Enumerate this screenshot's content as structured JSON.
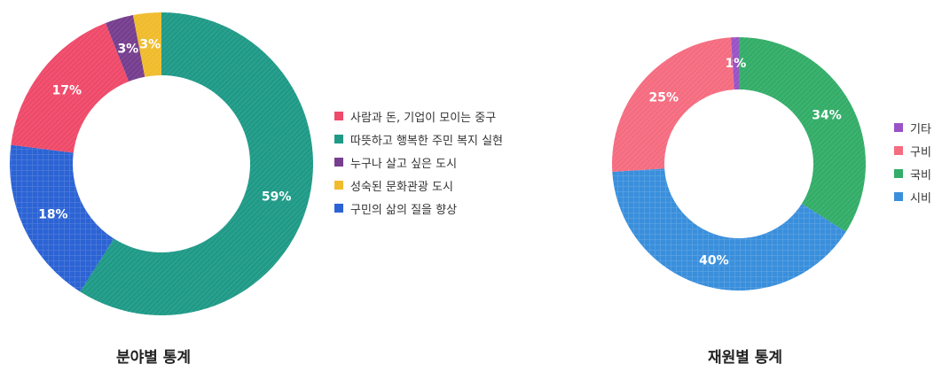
{
  "chart_data": [
    {
      "type": "pie",
      "title": "분야별 통계",
      "slices": [
        {
          "label": "따뜻하고 행복한 주민 복지 실현",
          "value": 59,
          "display": "59%",
          "color": "#1f9a87"
        },
        {
          "label": "구민의 삶의 질을 향상",
          "value": 18,
          "display": "18%",
          "color": "#2c63d4"
        },
        {
          "label": "사람과 돈, 기업이 모이는 중구",
          "value": 17,
          "display": "17%",
          "color": "#ef4a6a"
        },
        {
          "label": "누구나 살고 싶은 도시",
          "value": 3,
          "display": "3%",
          "color": "#763e8e"
        },
        {
          "label": "성숙된 문화관광 도시",
          "value": 3,
          "display": "3%",
          "color": "#f0bc2d"
        }
      ],
      "legend": [
        {
          "label": "사람과 돈, 기업이 모이는 중구",
          "color": "#ef4a6a"
        },
        {
          "label": "따뜻하고 행복한 주민 복지 실현",
          "color": "#1f9a87"
        },
        {
          "label": "누구나 살고 싶은 도시",
          "color": "#763e8e"
        },
        {
          "label": "성숙된 문화관광 도시",
          "color": "#f0bc2d"
        },
        {
          "label": "구민의 삶의 질을 향상",
          "color": "#2c63d4"
        }
      ],
      "legend_position": "right"
    },
    {
      "type": "pie",
      "title": "재원별 통계",
      "slices": [
        {
          "label": "국비",
          "value": 34,
          "display": "34%",
          "color": "#33ad68"
        },
        {
          "label": "시비",
          "value": 40,
          "display": "40%",
          "color": "#3a8fdc"
        },
        {
          "label": "구비",
          "value": 25,
          "display": "25%",
          "color": "#f56c80"
        },
        {
          "label": "기타",
          "value": 1,
          "display": "1%",
          "color": "#9a52c7"
        }
      ],
      "legend": [
        {
          "label": "기타",
          "color": "#9a52c7"
        },
        {
          "label": "구비",
          "color": "#f56c80"
        },
        {
          "label": "국비",
          "color": "#33ad68"
        },
        {
          "label": "시비",
          "color": "#3a8fdc"
        }
      ],
      "legend_position": "right"
    }
  ]
}
